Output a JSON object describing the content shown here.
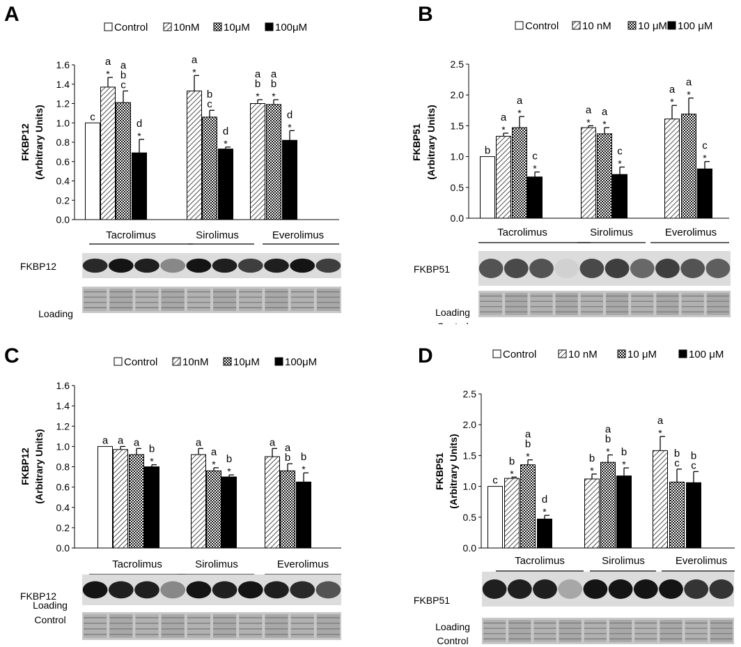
{
  "colors": {
    "control": "#ffffff",
    "low": "hatch-diagonal",
    "mid": "hatch-cross",
    "high": "#000000",
    "blot_bg": "#e4e4e4"
  },
  "chart_data": [
    {
      "panel": "A",
      "type": "bar",
      "legend": [
        "Control",
        "10nM",
        "10μM",
        "100μM"
      ],
      "ylabel": [
        "FKBP12",
        "(Arbitrary Units)"
      ],
      "ylim": [
        0,
        1.6
      ],
      "yticks": [
        "0.0",
        "0.2",
        "0.4",
        "0.6",
        "0.8",
        "1.0",
        "1.2",
        "1.4",
        "1.6"
      ],
      "groups": [
        "Tacrolimus",
        "Sirolimus",
        "Everolimus"
      ],
      "series": [
        {
          "name": "Control",
          "values": [
            1.0,
            null,
            null
          ],
          "errors": [
            0,
            null,
            null
          ],
          "labels": [
            [
              "c"
            ],
            null,
            null
          ]
        },
        {
          "name": "10nM",
          "values": [
            1.37,
            1.33,
            1.2
          ],
          "errors": [
            0.1,
            0.16,
            0.04
          ],
          "labels": [
            [
              "a",
              "*"
            ],
            [
              "a",
              "*"
            ],
            [
              "a",
              "b",
              "*"
            ]
          ]
        },
        {
          "name": "10μM",
          "values": [
            1.21,
            1.06,
            1.19
          ],
          "errors": [
            0.12,
            0.07,
            0.05
          ],
          "labels": [
            [
              "a",
              "b",
              "c"
            ],
            [
              "b",
              "c"
            ],
            [
              "a",
              "b",
              "*"
            ]
          ]
        },
        {
          "name": "100μM",
          "values": [
            0.69,
            0.73,
            0.82
          ],
          "errors": [
            0.14,
            0.02,
            0.1
          ],
          "labels": [
            [
              "d",
              "*"
            ],
            [
              "d",
              "*"
            ],
            [
              "d",
              "*"
            ]
          ]
        }
      ],
      "blot": {
        "protein": [
          "FKBP12"
        ],
        "loading": [
          "Loading",
          "Control"
        ]
      }
    },
    {
      "panel": "B",
      "type": "bar",
      "legend": [
        "Control",
        "10 nM",
        "10 μM",
        "100 μM"
      ],
      "ylabel": [
        "FKBP51",
        "(Arbitrary Units)"
      ],
      "ylim": [
        0,
        2.5
      ],
      "yticks": [
        "0.0",
        "0.5",
        "1.0",
        "1.5",
        "2.0",
        "2.5"
      ],
      "groups": [
        "Tacrolimus",
        "Sirolimus",
        "Everolimus"
      ],
      "series": [
        {
          "name": "Control",
          "values": [
            1.0,
            null,
            null
          ],
          "errors": [
            0,
            null,
            null
          ],
          "labels": [
            [
              "b"
            ],
            null,
            null
          ]
        },
        {
          "name": "10 nM",
          "values": [
            1.33,
            1.47,
            1.61
          ],
          "errors": [
            0.05,
            0.03,
            0.22
          ],
          "labels": [
            [
              "a",
              "*"
            ],
            [
              "a",
              "*"
            ],
            [
              "a",
              "*"
            ]
          ]
        },
        {
          "name": "10 μM",
          "values": [
            1.47,
            1.37,
            1.69
          ],
          "errors": [
            0.18,
            0.1,
            0.26
          ],
          "labels": [
            [
              "a",
              "*"
            ],
            [
              "a",
              "*"
            ],
            [
              "a",
              "*"
            ]
          ]
        },
        {
          "name": "100 μM",
          "values": [
            0.67,
            0.71,
            0.8
          ],
          "errors": [
            0.08,
            0.12,
            0.12
          ],
          "labels": [
            [
              "c",
              "*"
            ],
            [
              "c",
              "*"
            ],
            [
              "c",
              "*"
            ]
          ]
        }
      ],
      "blot": {
        "protein": [
          "FKBP51"
        ],
        "loading": [
          "Loading",
          "Control"
        ]
      }
    },
    {
      "panel": "C",
      "type": "bar",
      "legend": [
        "Control",
        "10nM",
        "10μM",
        "100μM"
      ],
      "ylabel": [
        "FKBP12",
        "(Arbitrary Units)"
      ],
      "ylim": [
        0,
        1.6
      ],
      "yticks": [
        "0.0",
        "0.2",
        "0.4",
        "0.6",
        "0.8",
        "1.0",
        "1.2",
        "1.4",
        "1.6"
      ],
      "groups": [
        "Tacrolimus",
        "Sirolimus",
        "Everolimus"
      ],
      "series": [
        {
          "name": "Control",
          "values": [
            1.0,
            null,
            null
          ],
          "errors": [
            0,
            null,
            null
          ],
          "labels": [
            [
              "a"
            ],
            null,
            null
          ]
        },
        {
          "name": "10nM",
          "values": [
            0.97,
            0.92,
            0.9
          ],
          "errors": [
            0.03,
            0.06,
            0.08
          ],
          "labels": [
            [
              "a"
            ],
            [
              "a"
            ],
            [
              "a"
            ]
          ]
        },
        {
          "name": "10μM",
          "values": [
            0.92,
            0.76,
            0.76
          ],
          "errors": [
            0.06,
            0.03,
            0.07
          ],
          "labels": [
            [
              "a"
            ],
            [
              "a",
              "*"
            ],
            [
              "a",
              "b"
            ]
          ]
        },
        {
          "name": "100μM",
          "values": [
            0.8,
            0.7,
            0.65
          ],
          "errors": [
            0.02,
            0.02,
            0.09
          ],
          "labels": [
            [
              "b",
              "*"
            ],
            [
              "b",
              "*"
            ],
            [
              "b",
              "*"
            ]
          ]
        }
      ],
      "blot": {
        "protein": [
          "FKBP12"
        ],
        "loading": [
          "Loading",
          "Control"
        ]
      }
    },
    {
      "panel": "D",
      "type": "bar",
      "legend": [
        "Control",
        "10 nM",
        "10 μM",
        "100 μM"
      ],
      "ylabel": [
        "FKBP51",
        "(Arbitrary Units)"
      ],
      "ylim": [
        0,
        2.5
      ],
      "yticks": [
        "0.0",
        "0.5",
        "1.0",
        "1.5",
        "2.0",
        "2.5"
      ],
      "groups": [
        "Tacrolimus",
        "Sirolimus",
        "Everolimus"
      ],
      "series": [
        {
          "name": "Control",
          "values": [
            1.0,
            null,
            null
          ],
          "errors": [
            0,
            null,
            null
          ],
          "labels": [
            [
              "c"
            ],
            null,
            null
          ]
        },
        {
          "name": "10 nM",
          "values": [
            1.13,
            1.12,
            1.58
          ],
          "errors": [
            0.02,
            0.08,
            0.23
          ],
          "labels": [
            [
              "b",
              "*"
            ],
            [
              "b",
              "*"
            ],
            [
              "a",
              "*"
            ]
          ]
        },
        {
          "name": "10 μM",
          "values": [
            1.35,
            1.39,
            1.07
          ],
          "errors": [
            0.08,
            0.12,
            0.21
          ],
          "labels": [
            [
              "a",
              "b",
              "*"
            ],
            [
              "a",
              "b",
              "*"
            ],
            [
              "b",
              "c"
            ]
          ]
        },
        {
          "name": "100 μM",
          "values": [
            0.47,
            1.17,
            1.06
          ],
          "errors": [
            0.06,
            0.13,
            0.18
          ],
          "labels": [
            [
              "d",
              "*"
            ],
            [
              "b",
              "*"
            ],
            [
              "b",
              "c"
            ]
          ]
        }
      ],
      "blot": {
        "protein": [
          "FKBP51"
        ],
        "loading": [
          "Loading",
          "Control"
        ]
      }
    }
  ]
}
